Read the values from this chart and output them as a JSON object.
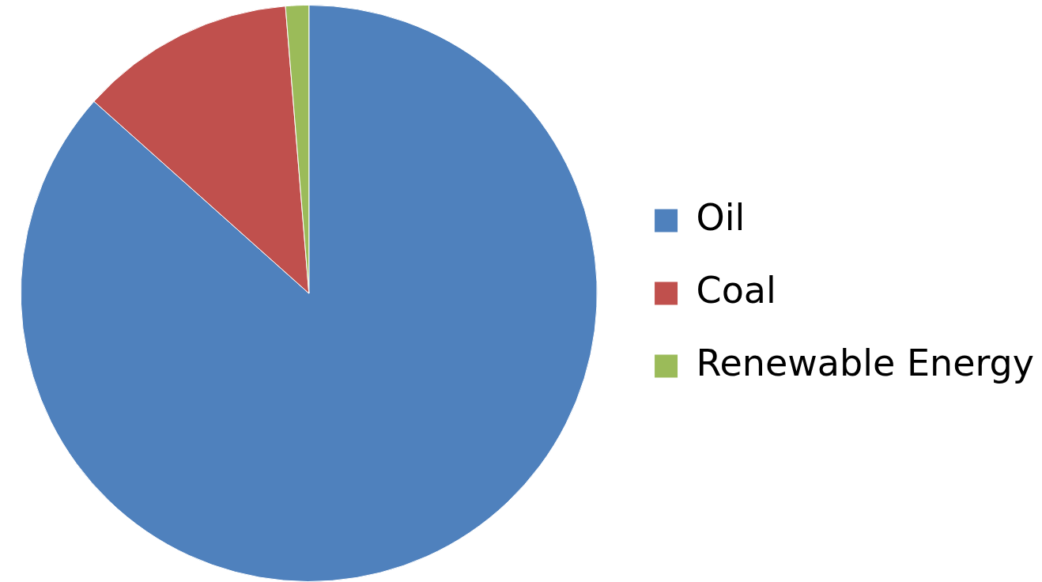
{
  "chart_data": {
    "type": "pie",
    "categories": [
      "Oil",
      "Coal",
      "Renewable Energy"
    ],
    "values": [
      86.6,
      12.1,
      1.3
    ],
    "colors": [
      "#4f81bd",
      "#c0504d",
      "#9bbb59"
    ],
    "legend": "right"
  }
}
